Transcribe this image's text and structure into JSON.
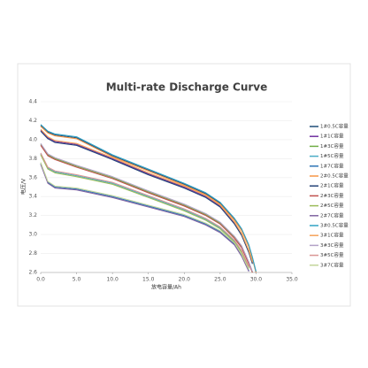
{
  "chart_data": {
    "type": "line",
    "title": "Multi-rate Discharge Curve",
    "x_label": "放电容量/Ah",
    "y_label": "电压/V",
    "x": [
      0,
      1,
      2,
      5,
      10,
      15,
      20,
      23,
      25,
      27,
      28,
      29,
      29.5,
      30
    ],
    "xlim": [
      0,
      35
    ],
    "ylim": [
      2.6,
      4.4
    ],
    "xticks": [
      {
        "value": 0,
        "label": "0.0"
      },
      {
        "value": 5,
        "label": "5.0"
      },
      {
        "value": 10,
        "label": "10.0"
      },
      {
        "value": 15,
        "label": "15.0"
      },
      {
        "value": 20,
        "label": "20.0"
      },
      {
        "value": 25,
        "label": "25.0"
      },
      {
        "value": 30,
        "label": "30.0"
      },
      {
        "value": 35,
        "label": "35.0"
      }
    ],
    "yticks": [
      2.6,
      2.8,
      {
        "value": 3,
        "label": "3.0"
      },
      3.2,
      3.4,
      3.6,
      3.8,
      {
        "value": 4,
        "label": "4.0"
      },
      4.2,
      4.4
    ],
    "legend": "right",
    "series": [
      {
        "name": "1#0.5C容量",
        "color": "#1f4e79",
        "values": [
          4.15,
          4.08,
          4.05,
          4.02,
          3.83,
          3.68,
          3.53,
          3.43,
          3.33,
          3.16,
          3.05,
          2.88,
          2.75,
          2.6
        ]
      },
      {
        "name": "1#1C容量",
        "color": "#7030a0",
        "values": [
          4.1,
          4.02,
          3.98,
          3.95,
          3.8,
          3.64,
          3.5,
          3.4,
          3.3,
          3.12,
          3.0,
          2.82,
          2.7,
          null
        ]
      },
      {
        "name": "1#3C容量",
        "color": "#70ad47",
        "values": [
          3.95,
          3.84,
          3.8,
          3.72,
          3.6,
          3.45,
          3.31,
          3.21,
          3.12,
          2.97,
          2.87,
          2.7,
          2.6,
          null
        ]
      },
      {
        "name": "1#5C容量",
        "color": "#4bacc6",
        "values": [
          3.85,
          3.7,
          3.66,
          3.62,
          3.54,
          3.4,
          3.26,
          3.16,
          3.07,
          2.93,
          2.82,
          2.65,
          null,
          null
        ]
      },
      {
        "name": "1#7C容量",
        "color": "#2e75b6",
        "values": [
          3.75,
          3.55,
          3.5,
          3.48,
          3.4,
          3.3,
          3.2,
          3.11,
          3.03,
          2.9,
          2.78,
          2.62,
          null,
          null
        ]
      },
      {
        "name": "2#0.5C容量",
        "color": "#f79646",
        "values": [
          4.14,
          4.07,
          4.04,
          4.01,
          3.82,
          3.67,
          3.52,
          3.42,
          3.32,
          3.15,
          3.04,
          2.87,
          2.74,
          2.6
        ]
      },
      {
        "name": "2#1C容量",
        "color": "#264478",
        "values": [
          4.09,
          4.01,
          3.97,
          3.94,
          3.79,
          3.63,
          3.49,
          3.39,
          3.29,
          3.11,
          2.99,
          2.81,
          2.69,
          null
        ]
      },
      {
        "name": "2#3C容量",
        "color": "#c0504d",
        "values": [
          3.94,
          3.83,
          3.79,
          3.71,
          3.59,
          3.44,
          3.3,
          3.2,
          3.11,
          2.96,
          2.86,
          2.69,
          2.6,
          null
        ]
      },
      {
        "name": "2#5C容量",
        "color": "#9bbb59",
        "values": [
          3.84,
          3.69,
          3.65,
          3.61,
          3.53,
          3.39,
          3.25,
          3.15,
          3.06,
          2.92,
          2.81,
          2.64,
          null,
          null
        ]
      },
      {
        "name": "2#7C容量",
        "color": "#8064a2",
        "values": [
          3.74,
          3.54,
          3.49,
          3.47,
          3.39,
          3.29,
          3.19,
          3.1,
          3.02,
          2.89,
          2.77,
          2.61,
          null,
          null
        ]
      },
      {
        "name": "3#0.5C容量",
        "color": "#31a2c4",
        "values": [
          4.16,
          4.09,
          4.06,
          4.03,
          3.84,
          3.69,
          3.54,
          3.44,
          3.34,
          3.17,
          3.06,
          2.89,
          2.76,
          2.61
        ]
      },
      {
        "name": "3#1C容量",
        "color": "#f5a35a",
        "values": [
          4.11,
          4.03,
          3.99,
          3.96,
          3.81,
          3.65,
          3.51,
          3.41,
          3.31,
          3.13,
          3.01,
          2.83,
          2.71,
          null
        ]
      },
      {
        "name": "3#3C容量",
        "color": "#b3a2c7",
        "values": [
          3.96,
          3.85,
          3.81,
          3.73,
          3.61,
          3.46,
          3.32,
          3.22,
          3.13,
          2.98,
          2.88,
          2.71,
          2.61,
          null
        ]
      },
      {
        "name": "3#5C容量",
        "color": "#d99694",
        "values": [
          3.86,
          3.71,
          3.67,
          3.63,
          3.55,
          3.41,
          3.27,
          3.17,
          3.08,
          2.94,
          2.83,
          2.66,
          null,
          null
        ]
      },
      {
        "name": "3#7C容量",
        "color": "#c3d69b",
        "values": [
          3.76,
          3.56,
          3.51,
          3.49,
          3.41,
          3.31,
          3.21,
          3.12,
          3.04,
          2.91,
          2.79,
          2.63,
          null,
          null
        ]
      }
    ]
  }
}
